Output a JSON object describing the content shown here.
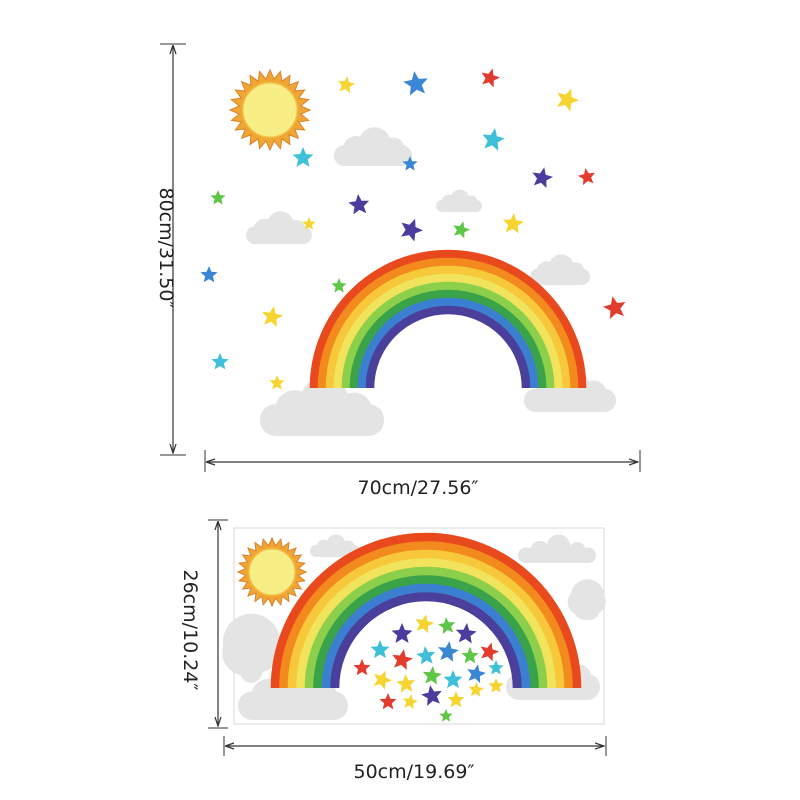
{
  "dimensions": {
    "large_height": "80cm/31.50″",
    "large_width": "70cm/27.56″",
    "small_height": "26cm/10.24″",
    "small_width": "50cm/19.69″"
  },
  "colors": {
    "rainbow": [
      "#e8491d",
      "#f28a1e",
      "#f7c839",
      "#f2e35c",
      "#8ccf4a",
      "#3aa34a",
      "#3a7fd0",
      "#4a3f9a"
    ],
    "star_palette": [
      "#f7d531",
      "#3a86d4",
      "#e33b2e",
      "#3ec0d8",
      "#4b3c9e",
      "#5ec746"
    ],
    "cloud": "#e4e4e4",
    "sun": "#f7ef86",
    "sun_rays": "#f0a632",
    "dimension_line": "#333333"
  },
  "decal_elements": [
    "sun-icon",
    "rainbow-icon",
    "cloud-icon",
    "star-icon"
  ]
}
